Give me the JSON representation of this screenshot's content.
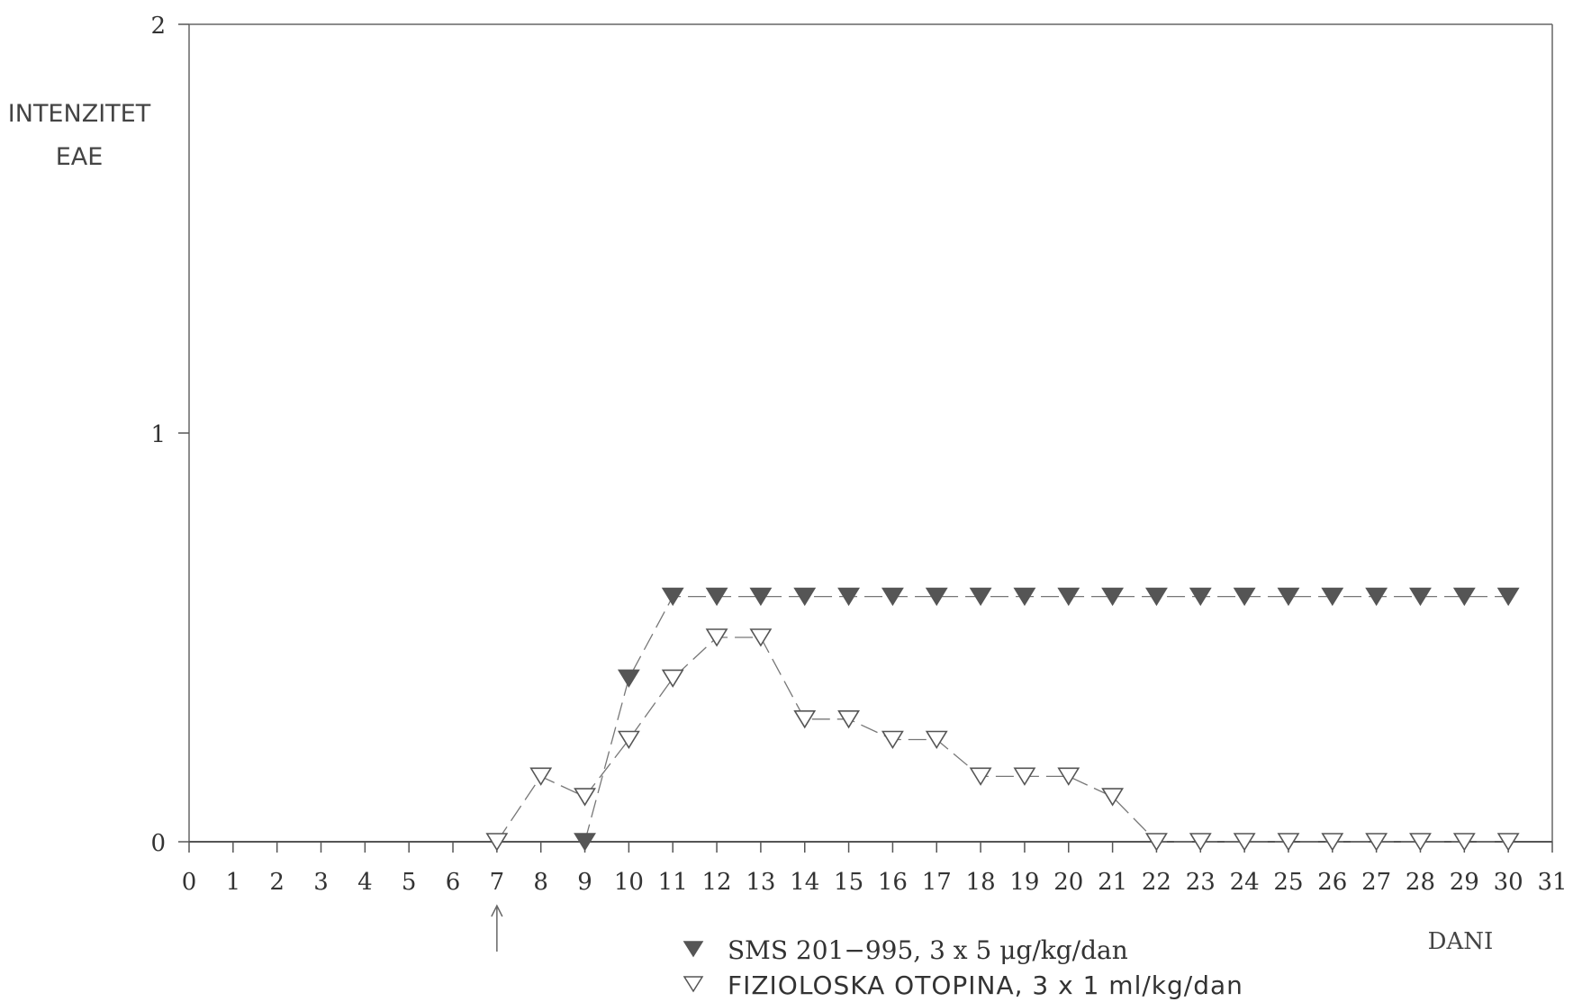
{
  "chart_data": {
    "type": "line",
    "ylabel_lines": [
      "INTENZITET",
      "EAE"
    ],
    "xlabel": "DANI",
    "xlim": [
      0,
      31
    ],
    "ylim": [
      0,
      2
    ],
    "x_ticks": [
      0,
      1,
      2,
      3,
      4,
      5,
      6,
      7,
      8,
      9,
      10,
      11,
      12,
      13,
      14,
      15,
      16,
      17,
      18,
      19,
      20,
      21,
      22,
      23,
      24,
      25,
      26,
      27,
      28,
      29,
      30,
      31
    ],
    "y_ticks": [
      0,
      1,
      2
    ],
    "grid": false,
    "annotation": {
      "type": "arrow-up",
      "x": 7
    },
    "series": [
      {
        "name": "SMS 201−995, 3 x 5 μg/kg/dan",
        "marker": "filled-triangle-down",
        "color": "#555555",
        "x": [
          9,
          10,
          11,
          12,
          13,
          14,
          15,
          16,
          17,
          18,
          19,
          20,
          21,
          22,
          23,
          24,
          25,
          26,
          27,
          28,
          29,
          30
        ],
        "y": [
          0,
          0.4,
          0.6,
          0.6,
          0.6,
          0.6,
          0.6,
          0.6,
          0.6,
          0.6,
          0.6,
          0.6,
          0.6,
          0.6,
          0.6,
          0.6,
          0.6,
          0.6,
          0.6,
          0.6,
          0.6,
          0.6
        ]
      },
      {
        "name": "FIZIOLOSKA OTOPINA, 3 x 1 ml/kg/dan",
        "marker": "open-triangle-down",
        "color": "#555555",
        "x": [
          7,
          8,
          9,
          10,
          11,
          12,
          13,
          14,
          15,
          16,
          17,
          18,
          19,
          20,
          21,
          22,
          23,
          24,
          25,
          26,
          27,
          28,
          29,
          30
        ],
        "y": [
          0,
          0.16,
          0.11,
          0.25,
          0.4,
          0.5,
          0.5,
          0.3,
          0.3,
          0.25,
          0.25,
          0.16,
          0.16,
          0.16,
          0.11,
          0,
          0,
          0,
          0,
          0,
          0,
          0,
          0,
          0
        ]
      }
    ]
  }
}
